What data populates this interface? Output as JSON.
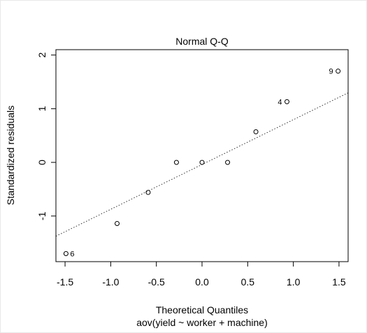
{
  "chart_data": {
    "type": "scatter",
    "title": "Normal Q-Q",
    "xlabel": "Theoretical Quantiles",
    "subtitle": "aov(yield ~ worker + machine)",
    "ylabel": "Standardized residuals",
    "xlim": [
      -1.6,
      1.6
    ],
    "ylim": [
      -1.85,
      2.1
    ],
    "x_ticks": [
      -1.5,
      -1.0,
      -0.5,
      0.0,
      0.5,
      1.0,
      1.5
    ],
    "x_tick_labels": [
      "-1.5",
      "-1.0",
      "-0.5",
      "0.0",
      "0.5",
      "1.0",
      "1.5"
    ],
    "y_ticks": [
      -1,
      0,
      1,
      2
    ],
    "y_tick_labels": [
      "-1",
      "0",
      "1",
      "2"
    ],
    "points": [
      {
        "x": -1.49,
        "y": -1.7,
        "label": "6"
      },
      {
        "x": -0.93,
        "y": -1.14,
        "label": ""
      },
      {
        "x": -0.59,
        "y": -0.56,
        "label": ""
      },
      {
        "x": -0.28,
        "y": 0.0,
        "label": ""
      },
      {
        "x": 0.0,
        "y": 0.0,
        "label": ""
      },
      {
        "x": 0.28,
        "y": 0.0,
        "label": ""
      },
      {
        "x": 0.59,
        "y": 0.57,
        "label": ""
      },
      {
        "x": 0.93,
        "y": 1.13,
        "label": "4"
      },
      {
        "x": 1.49,
        "y": 1.7,
        "label": "9"
      }
    ],
    "reference_line": {
      "style": "dotted",
      "slope": 0.835,
      "intercept": -0.04
    },
    "grid": false,
    "legend": "none"
  }
}
